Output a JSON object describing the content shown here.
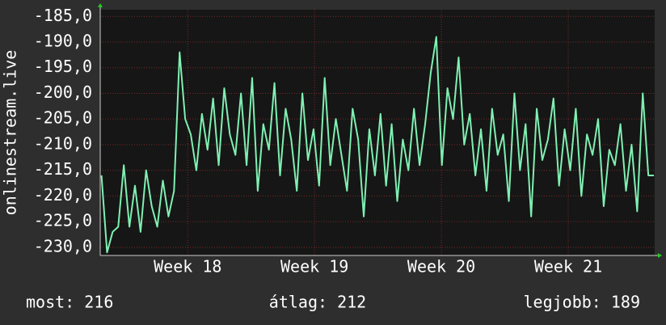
{
  "chart_data": {
    "type": "line",
    "y_label": "onlinestream.live",
    "color": "#7ff0b2",
    "grid": true,
    "xlim": [
      17.31,
      21.682
    ],
    "xticks": [
      {
        "value": 18,
        "label": "Week 18"
      },
      {
        "value": 19,
        "label": "Week 19"
      },
      {
        "value": 20,
        "label": "Week 20"
      },
      {
        "value": 21,
        "label": "Week 21"
      }
    ],
    "ylim": [
      -231.6,
      -183.7
    ],
    "yticks": [
      {
        "value": -185,
        "label": "-185,0"
      },
      {
        "value": -190,
        "label": "-190,0"
      },
      {
        "value": -195,
        "label": "-195,0"
      },
      {
        "value": -200,
        "label": "-200,0"
      },
      {
        "value": -205,
        "label": "-205,0"
      },
      {
        "value": -210,
        "label": "-210,0"
      },
      {
        "value": -215,
        "label": "-215,0"
      },
      {
        "value": -220,
        "label": "-220,0"
      },
      {
        "value": -225,
        "label": "-225,0"
      },
      {
        "value": -230,
        "label": "-230,0"
      }
    ],
    "x": [
      17.32,
      17.364,
      17.408,
      17.452,
      17.496,
      17.54,
      17.584,
      17.628,
      17.672,
      17.716,
      17.76,
      17.804,
      17.848,
      17.892,
      17.936,
      17.98,
      18.024,
      18.068,
      18.112,
      18.156,
      18.2,
      18.244,
      18.288,
      18.332,
      18.376,
      18.42,
      18.464,
      18.508,
      18.552,
      18.596,
      18.64,
      18.684,
      18.728,
      18.772,
      18.816,
      18.86,
      18.904,
      18.948,
      18.992,
      19.036,
      19.08,
      19.124,
      19.168,
      19.212,
      19.256,
      19.3,
      19.344,
      19.388,
      19.432,
      19.476,
      19.52,
      19.564,
      19.608,
      19.652,
      19.696,
      19.74,
      19.784,
      19.828,
      19.872,
      19.916,
      19.96,
      20.004,
      20.048,
      20.092,
      20.136,
      20.18,
      20.224,
      20.268,
      20.312,
      20.356,
      20.4,
      20.444,
      20.488,
      20.532,
      20.576,
      20.62,
      20.664,
      20.708,
      20.752,
      20.796,
      20.84,
      20.884,
      20.928,
      20.972,
      21.016,
      21.06,
      21.104,
      21.148,
      21.192,
      21.236,
      21.28,
      21.324,
      21.368,
      21.412,
      21.456,
      21.5,
      21.544,
      21.588,
      21.632,
      21.676
    ],
    "values": [
      -216,
      -231,
      -227,
      -226,
      -214,
      -226,
      -218,
      -227,
      -215,
      -222,
      -226,
      -217,
      -224,
      -219,
      -192,
      -205,
      -208,
      -215,
      -204,
      -211,
      -201,
      -214,
      -199,
      -208,
      -212,
      -200,
      -214,
      -197,
      -219,
      -206,
      -211,
      -198,
      -216,
      -203,
      -209,
      -219,
      -200,
      -213,
      -207,
      -218,
      -197,
      -214,
      -205,
      -212,
      -219,
      -203,
      -209,
      -224,
      -207,
      -216,
      -204,
      -218,
      -206,
      -221,
      -209,
      -215,
      -203,
      -214,
      -206,
      -196,
      -189,
      -214,
      -199,
      -205,
      -193,
      -210,
      -204,
      -216,
      -207,
      -219,
      -203,
      -212,
      -208,
      -221,
      -200,
      -215,
      -206,
      -224,
      -203,
      -213,
      -209,
      -201,
      -218,
      -207,
      -215,
      -203,
      -220,
      -208,
      -212,
      -205,
      -222,
      -211,
      -214,
      -206,
      -219,
      -210,
      -223,
      -200,
      -216,
      -216
    ],
    "stats": [
      "most: 216",
      "átlag: 212",
      "legjobb: 189"
    ]
  }
}
